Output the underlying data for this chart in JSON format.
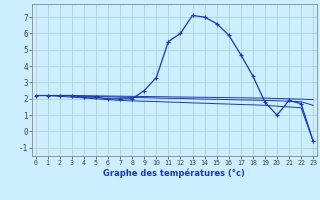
{
  "xlabel": "Graphe des températures (°c)",
  "background_color": "#cceeff",
  "line_color": "#1a3ab0",
  "grid_color": "#aacccc",
  "hours": [
    0,
    1,
    2,
    3,
    4,
    5,
    6,
    7,
    8,
    9,
    10,
    11,
    12,
    13,
    14,
    15,
    16,
    17,
    18,
    19,
    20,
    21,
    22,
    23
  ],
  "temp_main": [
    2.2,
    2.2,
    2.2,
    2.2,
    2.1,
    2.1,
    2.0,
    2.0,
    2.0,
    2.5,
    3.3,
    5.5,
    6.0,
    7.1,
    7.0,
    6.6,
    5.9,
    4.7,
    3.4,
    1.8,
    1.0,
    1.9,
    1.7,
    -0.6
  ],
  "temp_line2": [
    2.2,
    2.2,
    2.15,
    2.1,
    2.05,
    2.0,
    1.95,
    1.9,
    1.87,
    1.85,
    1.83,
    1.8,
    1.78,
    1.75,
    1.73,
    1.7,
    1.68,
    1.65,
    1.63,
    1.6,
    1.55,
    1.5,
    1.45,
    -0.6
  ],
  "temp_line3": [
    2.2,
    2.2,
    2.2,
    2.18,
    2.16,
    2.14,
    2.12,
    2.1,
    2.08,
    2.07,
    2.05,
    2.03,
    2.02,
    2.0,
    1.98,
    1.97,
    1.95,
    1.93,
    1.92,
    1.9,
    1.88,
    1.85,
    1.82,
    1.6
  ],
  "temp_line4": [
    2.2,
    2.2,
    2.2,
    2.2,
    2.19,
    2.18,
    2.17,
    2.16,
    2.15,
    2.14,
    2.13,
    2.12,
    2.11,
    2.1,
    2.09,
    2.08,
    2.07,
    2.06,
    2.05,
    2.04,
    2.02,
    2.0,
    1.98,
    1.95
  ],
  "ylim": [
    -1.5,
    7.8
  ],
  "xlim": [
    -0.3,
    23.3
  ],
  "yticks": [
    -1,
    0,
    1,
    2,
    3,
    4,
    5,
    6,
    7
  ],
  "xticks": [
    0,
    1,
    2,
    3,
    4,
    5,
    6,
    7,
    8,
    9,
    10,
    11,
    12,
    13,
    14,
    15,
    16,
    17,
    18,
    19,
    20,
    21,
    22,
    23
  ]
}
